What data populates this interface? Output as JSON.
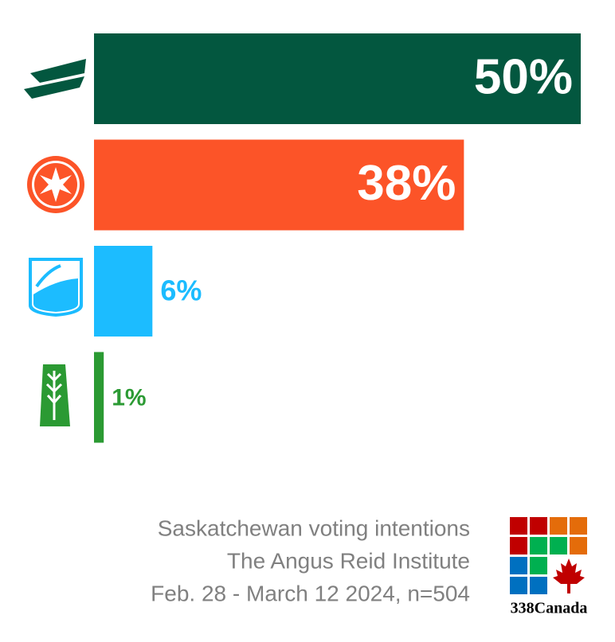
{
  "chart_data": {
    "type": "bar",
    "orientation": "horizontal",
    "values": [
      50,
      38,
      6,
      1
    ],
    "value_labels": [
      "50%",
      "38%",
      "6%",
      "1%"
    ],
    "colors": [
      "#03573f",
      "#fc5428",
      "#1cbcff",
      "#2b9a33"
    ],
    "footer": [
      "Saskatchewan voting intentions",
      "The Angus Reid Institute",
      "Feb. 28 - March 12 2024, n=504"
    ],
    "brand": "338Canada"
  }
}
